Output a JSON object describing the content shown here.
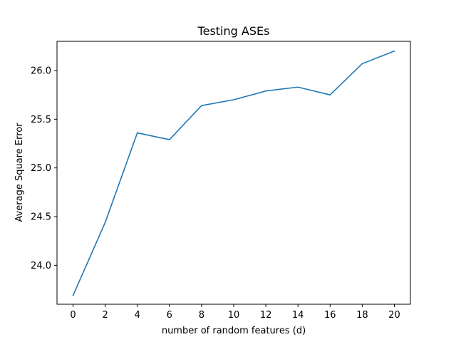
{
  "chart_data": {
    "type": "line",
    "title": "Testing ASEs",
    "xlabel": "number of random features (d)",
    "ylabel": "Average Square Error",
    "x": [
      0,
      2,
      4,
      6,
      8,
      10,
      12,
      14,
      16,
      18,
      20
    ],
    "series": [
      {
        "values": [
          23.69,
          24.44,
          25.36,
          25.29,
          25.64,
          25.7,
          25.79,
          25.83,
          25.75,
          26.07,
          26.2
        ],
        "color": "#1f77b4"
      }
    ],
    "xticks": [
      "0",
      "2",
      "4",
      "6",
      "8",
      "10",
      "12",
      "14",
      "16",
      "18",
      "20"
    ],
    "yticks": [
      "24.0",
      "24.5",
      "25.0",
      "25.5",
      "26.0"
    ],
    "xlim": [
      -1,
      21
    ],
    "ylim": [
      23.6,
      26.3
    ],
    "grid": false,
    "legend": "none"
  }
}
